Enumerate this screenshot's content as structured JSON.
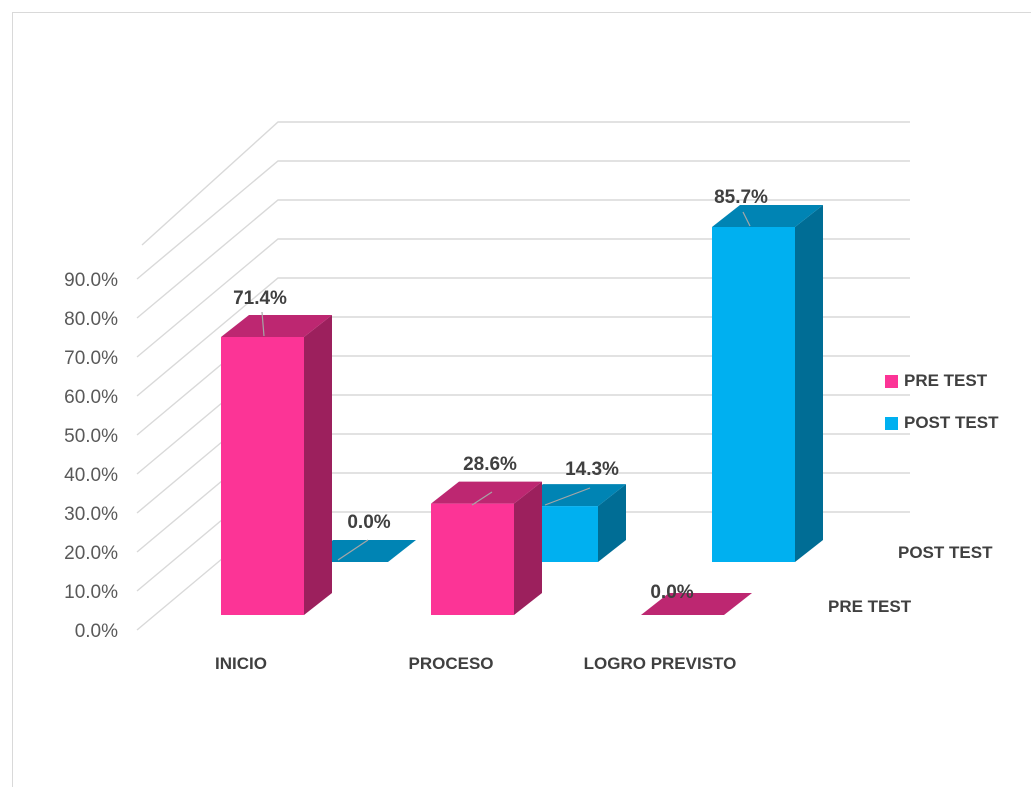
{
  "chart_data": {
    "type": "bar",
    "categories": [
      "INICIO",
      "PROCESO",
      "LOGRO PREVISTO"
    ],
    "series": [
      {
        "name": "PRE TEST",
        "values": [
          71.4,
          28.6,
          0.0
        ],
        "labels": [
          "71.4%",
          "28.6%",
          "0.0%"
        ],
        "color": "#fc3496"
      },
      {
        "name": "POST TEST",
        "values": [
          0.0,
          14.3,
          85.7
        ],
        "labels": [
          "0.0%",
          "14.3%",
          "85.7%"
        ],
        "color": "#00b0f0"
      }
    ],
    "y_ticks": [
      "0.0%",
      "10.0%",
      "20.0%",
      "30.0%",
      "40.0%",
      "50.0%",
      "60.0%",
      "70.0%",
      "80.0%",
      "90.0%"
    ],
    "ylim": [
      0,
      90
    ],
    "grid": true,
    "style": "3d-column",
    "legend_position": "right"
  },
  "legend": {
    "pre_label": "PRE TEST",
    "post_label": "POST TEST"
  },
  "depth_axis": {
    "post_label": "POST TEST",
    "pre_label": "PRE TEST"
  }
}
